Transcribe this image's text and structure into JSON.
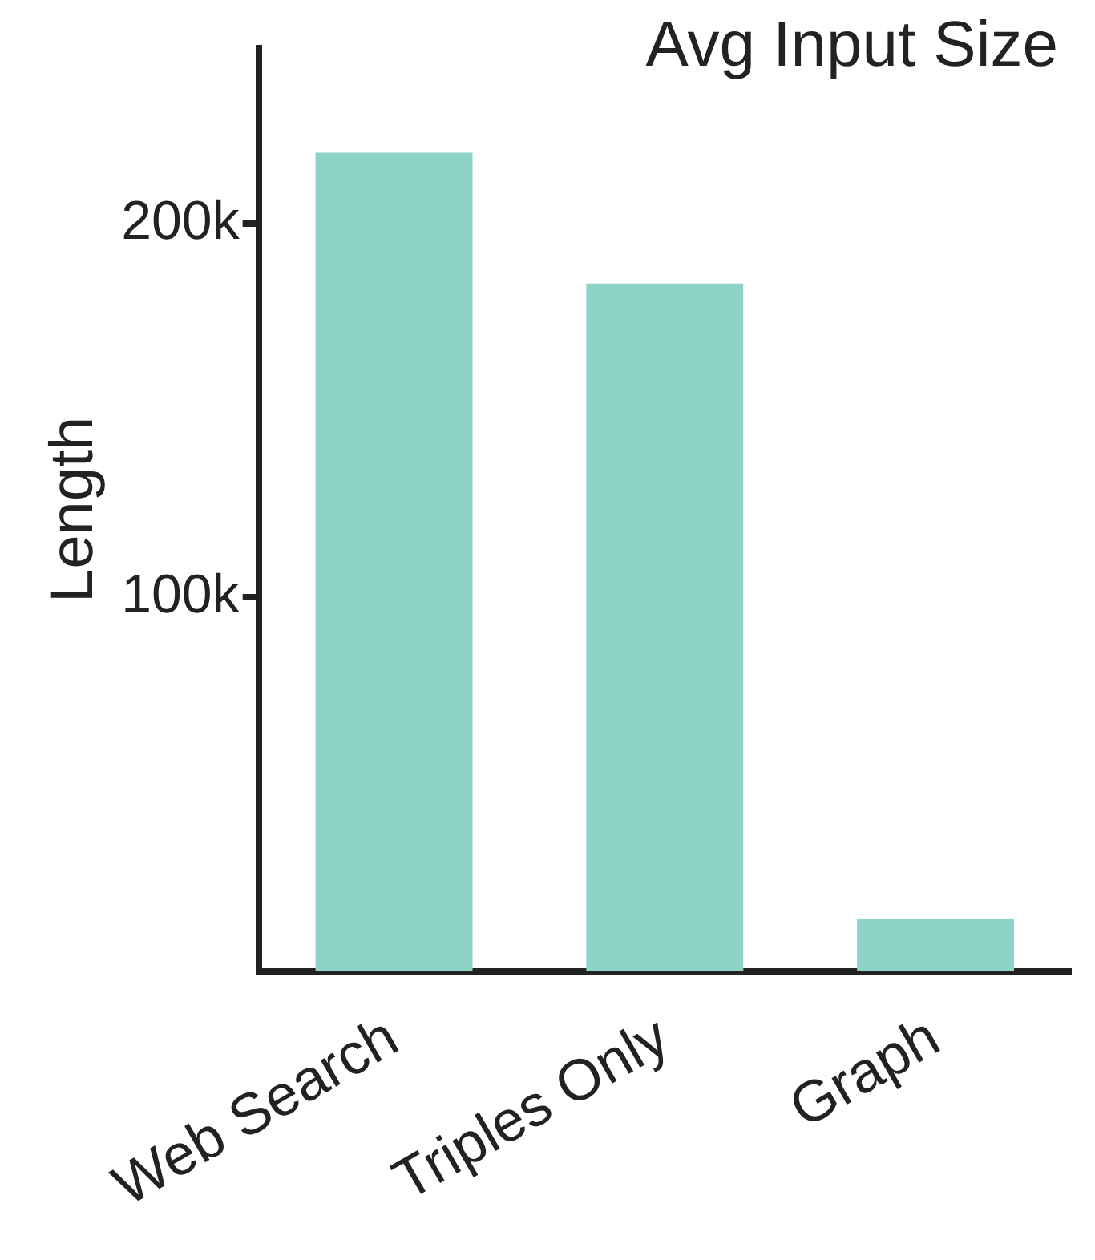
{
  "chart_data": {
    "type": "bar",
    "title": "Avg Input Size",
    "ylabel": "Length",
    "categories": [
      "Web Search",
      "Triples Only",
      "Graph"
    ],
    "values": [
      219000,
      184000,
      14000
    ],
    "color": "#8dd3c7",
    "ylim": [
      0,
      247000
    ],
    "yticks": [
      {
        "value": 100000,
        "label": "100k"
      },
      {
        "value": 200000,
        "label": "200k"
      }
    ],
    "grid": false,
    "legend": false
  }
}
